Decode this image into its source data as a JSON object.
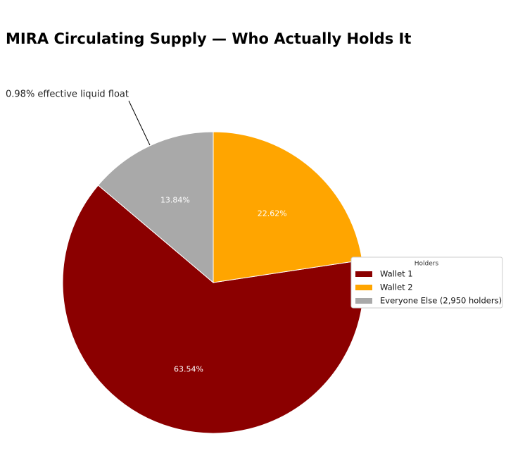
{
  "chart_data": {
    "type": "pie",
    "title": "MIRA Circulating Supply — Who Actually Holds It",
    "annotation": "0.98% effective liquid float",
    "legend_title": "Holders",
    "legend_position": "right",
    "categories": [
      "Wallet 1",
      "Wallet 2",
      "Everyone Else (2,950 holders)"
    ],
    "values": [
      63.54,
      22.62,
      13.84
    ],
    "value_labels": [
      "63.54%",
      "22.62%",
      "13.84%"
    ],
    "colors": [
      "#8b0000",
      "#ffa500",
      "#a9a9a9"
    ]
  }
}
